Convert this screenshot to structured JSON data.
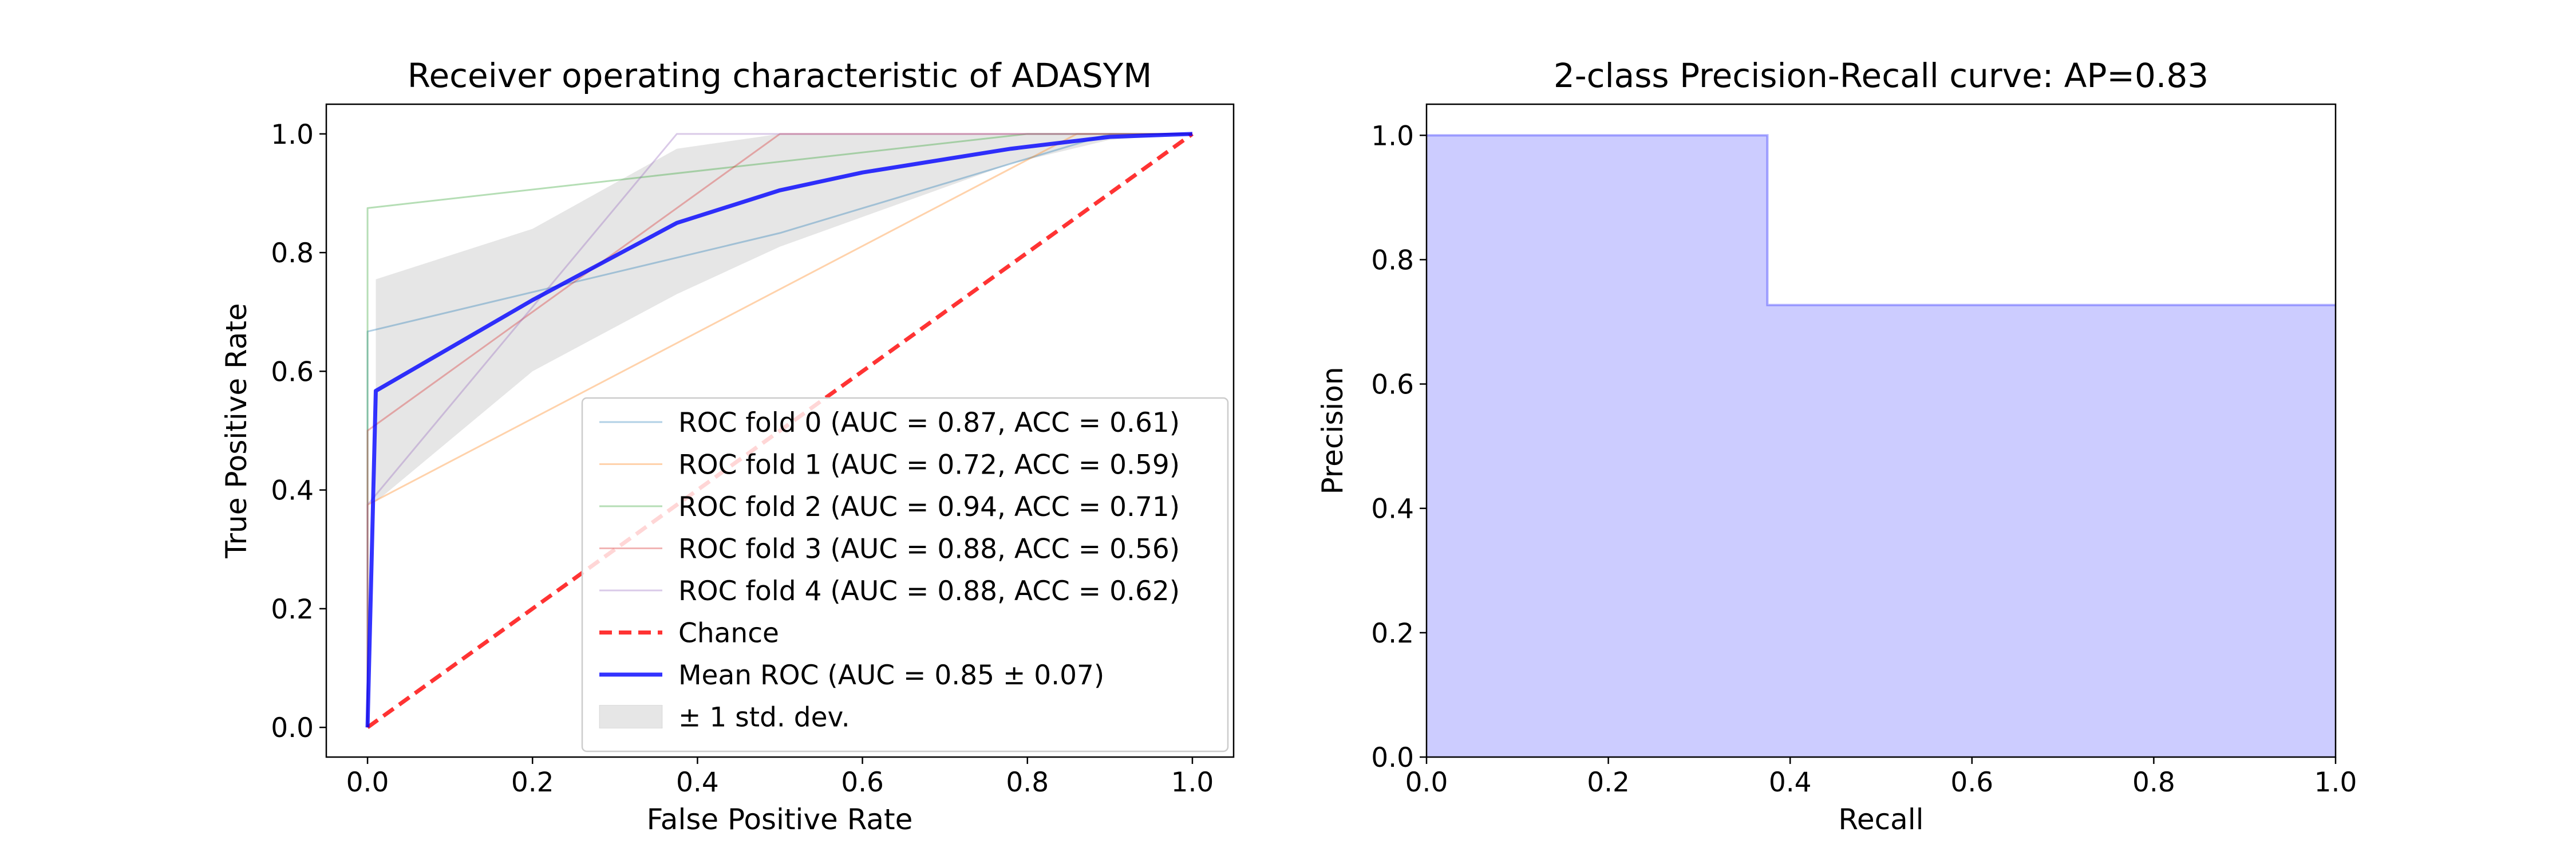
{
  "chart_data": [
    {
      "type": "line",
      "title": "Receiver operating characteristic of ADASYM",
      "xlabel": "False Positive Rate",
      "ylabel": "True Positive Rate",
      "xlim": [
        -0.05,
        1.05
      ],
      "ylim": [
        -0.05,
        1.05
      ],
      "xticks": [
        "0.0",
        "0.2",
        "0.4",
        "0.6",
        "0.8",
        "1.0"
      ],
      "yticks": [
        "0.0",
        "0.2",
        "0.4",
        "0.6",
        "0.8",
        "1.0"
      ],
      "grid": false,
      "legend_position": "lower right",
      "series": [
        {
          "name": "ROC fold 0 (AUC = 0.87, ACC = 0.61)",
          "color": "#1f77b4",
          "style": "thin",
          "x": [
            0,
            0,
            0.5,
            0.9,
            1
          ],
          "y": [
            0,
            0.667,
            0.833,
            1.0,
            1.0
          ]
        },
        {
          "name": "ROC fold 1 (AUC = 0.72, ACC = 0.59)",
          "color": "#ff7f0e",
          "style": "thin",
          "x": [
            0,
            0,
            0.86,
            1
          ],
          "y": [
            0,
            0.375,
            1.0,
            1.0
          ]
        },
        {
          "name": "ROC fold 2 (AUC = 0.94, ACC = 0.71)",
          "color": "#2ca02c",
          "style": "thin",
          "x": [
            0,
            0,
            0.8,
            1
          ],
          "y": [
            0,
            0.875,
            1.0,
            1.0
          ]
        },
        {
          "name": "ROC fold 3 (AUC = 0.88, ACC = 0.56)",
          "color": "#d62728",
          "style": "thin",
          "x": [
            0,
            0,
            0.5,
            1
          ],
          "y": [
            0,
            0.5,
            1.0,
            1.0
          ]
        },
        {
          "name": "ROC fold 4 (AUC = 0.88, ACC = 0.62)",
          "color": "#9467bd",
          "style": "thin",
          "x": [
            0,
            0,
            0.375,
            1
          ],
          "y": [
            0,
            0.375,
            1.0,
            1.0
          ]
        },
        {
          "name": "Chance",
          "color": "#ff0000",
          "style": "dashed",
          "x": [
            0,
            1
          ],
          "y": [
            0,
            1
          ]
        },
        {
          "name": "Mean ROC (AUC = 0.85 ± 0.07)",
          "color": "#0000ff",
          "style": "thick",
          "x": [
            0,
            0.01,
            0.2,
            0.375,
            0.5,
            0.6,
            0.78,
            0.9,
            1.0
          ],
          "y": [
            0,
            0.567,
            0.72,
            0.85,
            0.905,
            0.935,
            0.975,
            0.995,
            1.0
          ]
        }
      ],
      "band": {
        "name": "± 1 std. dev.",
        "color": "#808080",
        "x": [
          0.01,
          0.2,
          0.375,
          0.5,
          0.6,
          0.78,
          0.9,
          1.0
        ],
        "upper": [
          0.755,
          0.84,
          0.975,
          1.0,
          1.0,
          1.0,
          1.0,
          1.0
        ],
        "lower": [
          0.38,
          0.6,
          0.73,
          0.81,
          0.86,
          0.95,
          0.99,
          1.0
        ]
      }
    },
    {
      "type": "area",
      "title": "2-class Precision-Recall curve: AP=0.83",
      "xlabel": "Recall",
      "ylabel": "Precision",
      "xlim": [
        0,
        1
      ],
      "ylim": [
        0,
        1.05
      ],
      "xticks": [
        "0.0",
        "0.2",
        "0.4",
        "0.6",
        "0.8",
        "1.0"
      ],
      "yticks": [
        "0.0",
        "0.2",
        "0.4",
        "0.6",
        "0.8",
        "1.0"
      ],
      "grid": false,
      "series": [
        {
          "color": "#0000ff",
          "step": "post",
          "x": [
            0,
            0.375,
            0.375,
            1.0
          ],
          "y": [
            1.0,
            1.0,
            0.727,
            0.727
          ]
        }
      ]
    }
  ]
}
